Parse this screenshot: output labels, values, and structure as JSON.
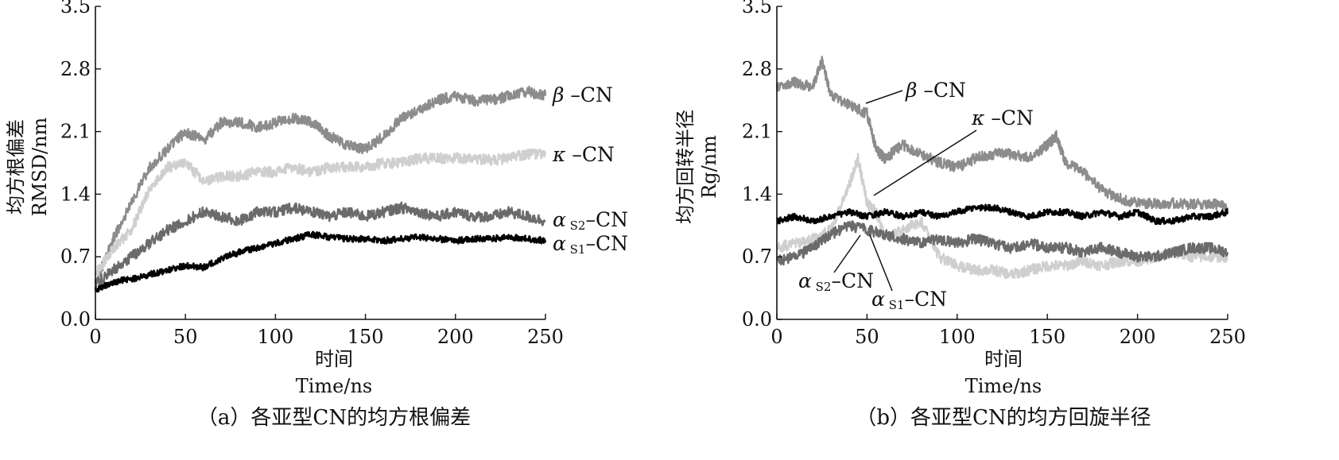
{
  "chart_data": [
    {
      "type": "line",
      "caption": "（a）各亚型CN的均方根偏差",
      "xlabel_cn": "时间",
      "xlabel_en": "Time/ns",
      "ylabel_cn": "均方根偏差",
      "ylabel_en": "RMSD/nm",
      "xlim": [
        0,
        250
      ],
      "ylim": [
        0,
        3.5
      ],
      "xticks": [
        "0",
        "50",
        "100",
        "150",
        "200",
        "250"
      ],
      "yticks": [
        "0.0",
        "0.7",
        "1.4",
        "2.1",
        "2.8",
        "3.5"
      ],
      "grid": false,
      "series": [
        {
          "name": "β",
          "suffix": "–CN",
          "color": "#8c8c8c",
          "x": [
            0,
            10,
            20,
            30,
            40,
            50,
            60,
            70,
            80,
            90,
            100,
            110,
            120,
            130,
            140,
            150,
            160,
            170,
            180,
            190,
            200,
            210,
            220,
            230,
            240,
            250
          ],
          "y": [
            0.4,
            0.9,
            1.3,
            1.7,
            1.9,
            2.1,
            2.0,
            2.2,
            2.2,
            2.15,
            2.2,
            2.25,
            2.2,
            2.05,
            1.95,
            1.9,
            2.05,
            2.25,
            2.35,
            2.45,
            2.5,
            2.45,
            2.45,
            2.5,
            2.55,
            2.5
          ]
        },
        {
          "name": "κ",
          "suffix": "–CN",
          "color": "#cfcfcf",
          "x": [
            0,
            10,
            20,
            30,
            40,
            50,
            60,
            70,
            80,
            90,
            100,
            110,
            120,
            130,
            140,
            150,
            160,
            170,
            180,
            190,
            200,
            210,
            220,
            230,
            240,
            250
          ],
          "y": [
            0.5,
            0.8,
            1.0,
            1.45,
            1.7,
            1.75,
            1.55,
            1.6,
            1.6,
            1.65,
            1.65,
            1.7,
            1.65,
            1.7,
            1.7,
            1.7,
            1.75,
            1.75,
            1.8,
            1.8,
            1.8,
            1.8,
            1.78,
            1.8,
            1.85,
            1.85
          ]
        },
        {
          "name": "α",
          "sub": "S2",
          "suffix": "–CN",
          "color": "#6b6b6b",
          "x": [
            0,
            10,
            20,
            30,
            40,
            50,
            60,
            70,
            80,
            90,
            100,
            110,
            120,
            130,
            140,
            150,
            160,
            170,
            180,
            190,
            200,
            210,
            220,
            230,
            240,
            250
          ],
          "y": [
            0.4,
            0.55,
            0.7,
            0.85,
            1.0,
            1.1,
            1.2,
            1.15,
            1.1,
            1.2,
            1.2,
            1.25,
            1.2,
            1.15,
            1.2,
            1.15,
            1.2,
            1.25,
            1.2,
            1.15,
            1.2,
            1.15,
            1.15,
            1.2,
            1.15,
            1.1
          ]
        },
        {
          "name": "α",
          "sub": "S1",
          "suffix": "–CN",
          "color": "#000000",
          "x": [
            0,
            10,
            20,
            30,
            40,
            50,
            60,
            70,
            80,
            90,
            100,
            110,
            120,
            130,
            140,
            150,
            160,
            170,
            180,
            190,
            200,
            210,
            220,
            230,
            240,
            250
          ],
          "y": [
            0.33,
            0.42,
            0.45,
            0.5,
            0.55,
            0.6,
            0.58,
            0.68,
            0.75,
            0.8,
            0.85,
            0.9,
            0.95,
            0.92,
            0.9,
            0.9,
            0.88,
            0.9,
            0.92,
            0.9,
            0.88,
            0.9,
            0.9,
            0.92,
            0.9,
            0.88
          ]
        }
      ]
    },
    {
      "type": "line",
      "caption": "（b）各亚型CN的均方回旋半径",
      "xlabel_cn": "时间",
      "xlabel_en": "Time/ns",
      "ylabel_cn": "均方回转半径",
      "ylabel_en": "Rg/nm",
      "xlim": [
        0,
        250
      ],
      "ylim": [
        0,
        3.5
      ],
      "xticks": [
        "0",
        "50",
        "100",
        "150",
        "200",
        "250"
      ],
      "yticks": [
        "0.0",
        "0.7",
        "1.4",
        "2.1",
        "2.8",
        "3.5"
      ],
      "grid": false,
      "series": [
        {
          "name": "β",
          "suffix": "–CN",
          "color": "#8c8c8c",
          "x": [
            0,
            10,
            20,
            25,
            30,
            40,
            50,
            55,
            60,
            70,
            80,
            90,
            100,
            110,
            120,
            130,
            140,
            150,
            155,
            160,
            170,
            180,
            190,
            200,
            210,
            220,
            230,
            240,
            250
          ],
          "y": [
            2.6,
            2.65,
            2.6,
            2.9,
            2.5,
            2.4,
            2.3,
            1.9,
            1.8,
            1.95,
            1.85,
            1.75,
            1.7,
            1.8,
            1.85,
            1.85,
            1.8,
            1.95,
            2.05,
            1.75,
            1.65,
            1.45,
            1.35,
            1.3,
            1.3,
            1.3,
            1.28,
            1.3,
            1.25
          ]
        },
        {
          "name": "κ",
          "suffix": "–CN",
          "color": "#cfcfcf",
          "x": [
            0,
            10,
            20,
            30,
            40,
            45,
            50,
            55,
            60,
            70,
            80,
            90,
            100,
            110,
            120,
            130,
            140,
            150,
            160,
            170,
            180,
            190,
            200,
            210,
            220,
            230,
            240,
            250
          ],
          "y": [
            0.8,
            0.85,
            0.9,
            1.0,
            1.5,
            1.8,
            1.3,
            1.2,
            0.9,
            1.0,
            1.1,
            0.7,
            0.6,
            0.55,
            0.55,
            0.5,
            0.55,
            0.6,
            0.6,
            0.65,
            0.6,
            0.65,
            0.65,
            0.7,
            0.75,
            0.7,
            0.7,
            0.7
          ]
        },
        {
          "name": "α",
          "sub": "S2",
          "suffix": "–CN",
          "color": "#6b6b6b",
          "x": [
            0,
            10,
            20,
            30,
            40,
            50,
            60,
            70,
            80,
            90,
            100,
            110,
            120,
            130,
            140,
            150,
            160,
            170,
            180,
            190,
            200,
            210,
            220,
            230,
            240,
            250
          ],
          "y": [
            0.65,
            0.7,
            0.8,
            0.95,
            1.05,
            1.0,
            0.95,
            0.9,
            0.85,
            0.9,
            0.85,
            0.9,
            0.85,
            0.8,
            0.85,
            0.8,
            0.8,
            0.75,
            0.8,
            0.75,
            0.7,
            0.7,
            0.75,
            0.8,
            0.8,
            0.75
          ]
        },
        {
          "name": "α",
          "sub": "S1",
          "suffix": "–CN",
          "color": "#000000",
          "x": [
            0,
            10,
            20,
            30,
            40,
            50,
            60,
            70,
            80,
            90,
            100,
            110,
            120,
            130,
            140,
            150,
            160,
            170,
            180,
            190,
            200,
            210,
            220,
            230,
            240,
            250
          ],
          "y": [
            1.1,
            1.15,
            1.1,
            1.15,
            1.2,
            1.15,
            1.2,
            1.15,
            1.2,
            1.15,
            1.2,
            1.25,
            1.25,
            1.2,
            1.15,
            1.2,
            1.2,
            1.15,
            1.2,
            1.15,
            1.2,
            1.1,
            1.1,
            1.15,
            1.15,
            1.2
          ]
        }
      ]
    }
  ]
}
